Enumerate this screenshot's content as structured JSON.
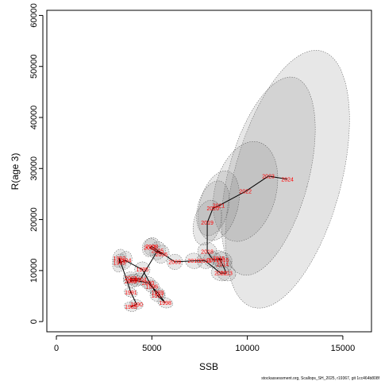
{
  "chart_data": {
    "type": "scatter",
    "xlabel": "SSB",
    "ylabel": "R(age 3)",
    "xlim": [
      -500,
      16500
    ],
    "ylim": [
      -2000,
      61000
    ],
    "x_ticks": [
      0,
      5000,
      10000,
      15000
    ],
    "y_ticks": [
      0,
      10000,
      20000,
      30000,
      40000,
      50000,
      60000
    ],
    "x_tick_labels": [
      "0",
      "5000",
      "10000",
      "15000"
    ],
    "y_tick_labels": [
      "0",
      "10000",
      "20000",
      "30000",
      "40000",
      "50000",
      "60000"
    ],
    "footer": "stockassessment.org, Scallops_SH_2025, r19367, git 1cc464b808f",
    "points": [
      {
        "year": "1989",
        "ssb": 3900,
        "rec": 2900,
        "ssb_halfwidth": 350,
        "rec_halfwidth": 900
      },
      {
        "year": "1990",
        "ssb": 4200,
        "rec": 3400,
        "ssb_halfwidth": 350,
        "rec_halfwidth": 900
      },
      {
        "year": "1991",
        "ssb": 3900,
        "rec": 5700,
        "ssb_halfwidth": 350,
        "rec_halfwidth": 900
      },
      {
        "year": "1992",
        "ssb": 3300,
        "rec": 12400,
        "ssb_halfwidth": 350,
        "rec_halfwidth": 1800
      },
      {
        "year": "1993",
        "ssb": 3300,
        "rec": 11500,
        "ssb_halfwidth": 350,
        "rec_halfwidth": 1800
      },
      {
        "year": "1994",
        "ssb": 3600,
        "rec": 12000,
        "ssb_halfwidth": 350,
        "rec_halfwidth": 1800
      },
      {
        "year": "1995",
        "ssb": 4500,
        "rec": 10200,
        "ssb_halfwidth": 400,
        "rec_halfwidth": 1500
      },
      {
        "year": "1996",
        "ssb": 5000,
        "rec": 6900,
        "ssb_halfwidth": 400,
        "rec_halfwidth": 1200
      },
      {
        "year": "1997",
        "ssb": 5300,
        "rec": 5100,
        "ssb_halfwidth": 400,
        "rec_halfwidth": 1200
      },
      {
        "year": "1998",
        "ssb": 5700,
        "rec": 3700,
        "ssb_halfwidth": 400,
        "rec_halfwidth": 1000
      },
      {
        "year": "1999",
        "ssb": 5300,
        "rec": 5700,
        "ssb_halfwidth": 400,
        "rec_halfwidth": 1000
      },
      {
        "year": "2000",
        "ssb": 4800,
        "rec": 7600,
        "ssb_halfwidth": 400,
        "rec_halfwidth": 1200
      },
      {
        "year": "2001",
        "ssb": 4100,
        "rec": 8100,
        "ssb_halfwidth": 400,
        "rec_halfwidth": 1200
      },
      {
        "year": "2002",
        "ssb": 3900,
        "rec": 7900,
        "ssb_halfwidth": 400,
        "rec_halfwidth": 1200
      },
      {
        "year": "2003",
        "ssb": 3900,
        "rec": 8500,
        "ssb_halfwidth": 400,
        "rec_halfwidth": 1200
      },
      {
        "year": "2004",
        "ssb": 4400,
        "rec": 8300,
        "ssb_halfwidth": 400,
        "rec_halfwidth": 1200
      },
      {
        "year": "2005",
        "ssb": 5300,
        "rec": 13900,
        "ssb_halfwidth": 400,
        "rec_halfwidth": 1800
      },
      {
        "year": "2006",
        "ssb": 5500,
        "rec": 13200,
        "ssb_halfwidth": 400,
        "rec_halfwidth": 1800
      },
      {
        "year": "2007",
        "ssb": 4900,
        "rec": 14500,
        "ssb_halfwidth": 400,
        "rec_halfwidth": 1800
      },
      {
        "year": "2008",
        "ssb": 5000,
        "rec": 14700,
        "ssb_halfwidth": 400,
        "rec_halfwidth": 1800
      },
      {
        "year": "2009",
        "ssb": 6200,
        "rec": 11700,
        "ssb_halfwidth": 400,
        "rec_halfwidth": 1500
      },
      {
        "year": "2010",
        "ssb": 7200,
        "rec": 11900,
        "ssb_halfwidth": 450,
        "rec_halfwidth": 1500
      },
      {
        "year": "2011",
        "ssb": 7800,
        "rec": 11900,
        "ssb_halfwidth": 450,
        "rec_halfwidth": 1500
      },
      {
        "year": "2012",
        "ssb": 8600,
        "rec": 9500,
        "ssb_halfwidth": 500,
        "rec_halfwidth": 1500
      },
      {
        "year": "2013",
        "ssb": 8900,
        "rec": 9500,
        "ssb_halfwidth": 500,
        "rec_halfwidth": 1500
      },
      {
        "year": "2014",
        "ssb": 8700,
        "rec": 11200,
        "ssb_halfwidth": 500,
        "rec_halfwidth": 1500
      },
      {
        "year": "2015",
        "ssb": 8500,
        "rec": 12400,
        "ssb_halfwidth": 500,
        "rec_halfwidth": 1500
      },
      {
        "year": "2016",
        "ssb": 8700,
        "rec": 12100,
        "ssb_halfwidth": 500,
        "rec_halfwidth": 1500
      },
      {
        "year": "2017",
        "ssb": 8200,
        "rec": 12100,
        "ssb_halfwidth": 500,
        "rec_halfwidth": 1500
      },
      {
        "year": "2018",
        "ssb": 7900,
        "rec": 13700,
        "ssb_halfwidth": 500,
        "rec_halfwidth": 1800
      },
      {
        "year": "2019",
        "ssb": 7900,
        "rec": 19400,
        "ssb_halfwidth": 700,
        "rec_halfwidth": 4500
      },
      {
        "year": "2020",
        "ssb": 8200,
        "rec": 22200,
        "ssb_halfwidth": 800,
        "rec_halfwidth": 5500
      },
      {
        "year": "2021",
        "ssb": 8500,
        "rec": 22700,
        "ssb_halfwidth": 1000,
        "rec_halfwidth": 7000
      },
      {
        "year": "2022",
        "ssb": 9900,
        "rec": 25500,
        "ssb_halfwidth": 1600,
        "rec_halfwidth": 10000
      },
      {
        "year": "2023",
        "ssb": 11100,
        "rec": 28500,
        "ssb_halfwidth": 2100,
        "rec_halfwidth": 20000
      },
      {
        "year": "2024",
        "ssb": 12100,
        "rec": 27900,
        "ssb_halfwidth": 2800,
        "rec_halfwidth": 26000
      }
    ]
  }
}
